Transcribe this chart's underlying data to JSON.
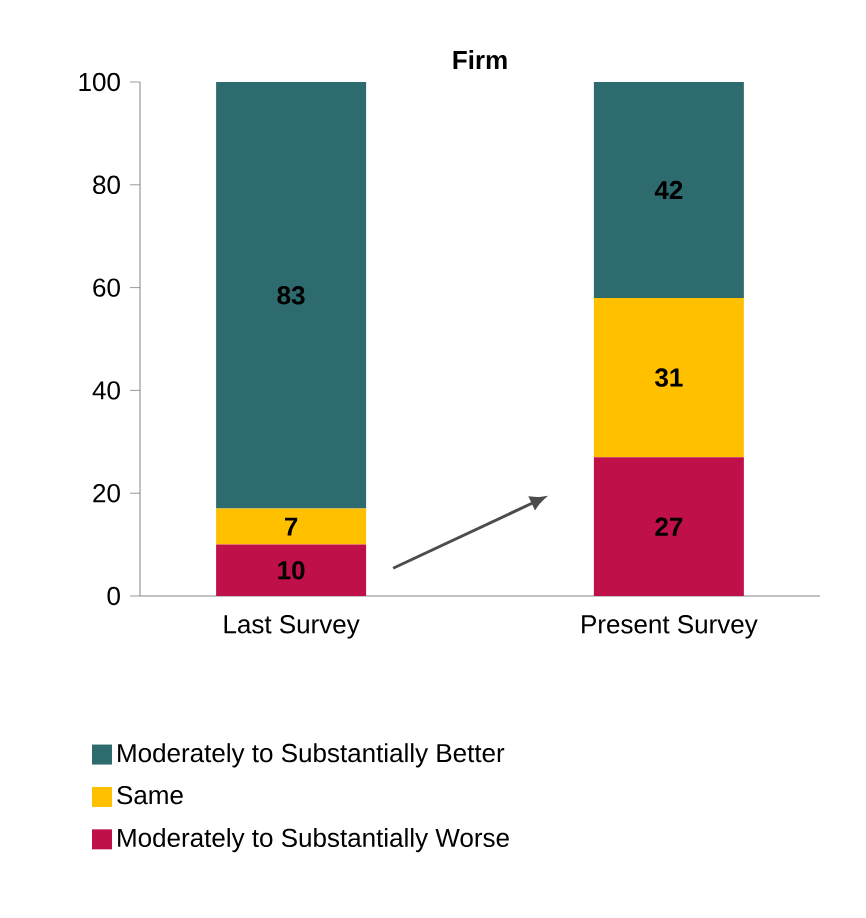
{
  "chart_data": {
    "type": "bar",
    "title": "Firm",
    "stacked": true,
    "data_labels": true,
    "categories": [
      "Last Survey",
      "Present Survey"
    ],
    "series": [
      {
        "name": "Moderately to Substantially Worse",
        "color": "#c0104a",
        "values": [
          10,
          27
        ]
      },
      {
        "name": "Same",
        "color": "#ffc000",
        "values": [
          7,
          31
        ]
      },
      {
        "name": "Moderately to Substantially Better",
        "color": "#2e6b6e",
        "values": [
          83,
          42
        ]
      }
    ],
    "ylim": [
      0,
      100
    ],
    "yticks": [
      0,
      20,
      40,
      60,
      80,
      100
    ],
    "grid": false,
    "legend": "bottom"
  }
}
